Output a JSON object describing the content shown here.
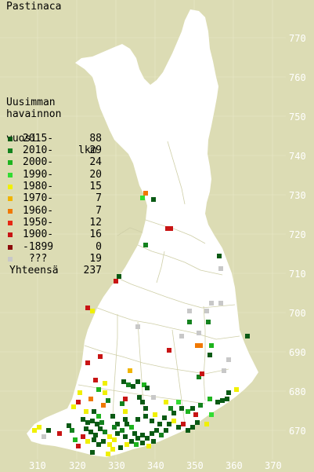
{
  "title": "Pastinaca",
  "legend": {
    "heading": [
      "Uusimman",
      "havainnon"
    ],
    "heading_last": "vuosi",
    "count_header": "lkm",
    "items": [
      {
        "label": "2015-",
        "count": "88",
        "color": "#0a5a14"
      },
      {
        "label": "2010-",
        "count": "29",
        "color": "#14821e"
      },
      {
        "label": "2000-",
        "count": "24",
        "color": "#1eb41e"
      },
      {
        "label": "1990-",
        "count": "20",
        "color": "#32dc32"
      },
      {
        "label": "1980-",
        "count": "15",
        "color": "#f0f000"
      },
      {
        "label": "1970-",
        "count": "7",
        "color": "#f0b400"
      },
      {
        "label": "1960-",
        "count": "7",
        "color": "#f07800"
      },
      {
        "label": "1950-",
        "count": "12",
        "color": "#e62814"
      },
      {
        "label": "1900-",
        "count": "16",
        "color": "#c81414"
      },
      {
        "label": "-1899",
        "count": "0",
        "color": "#8c0a0a"
      },
      {
        "label": " ???",
        "count": "19",
        "color": "#c8c8c8"
      }
    ],
    "total_label": "Yhteensä",
    "total_count": "237"
  },
  "axes": {
    "y_labels": [
      "770",
      "760",
      "750",
      "740",
      "730",
      "720",
      "710",
      "700",
      "690",
      "680",
      "670"
    ],
    "x_labels": [
      "310",
      "320",
      "330",
      "340",
      "350",
      "360",
      "370"
    ]
  }
}
